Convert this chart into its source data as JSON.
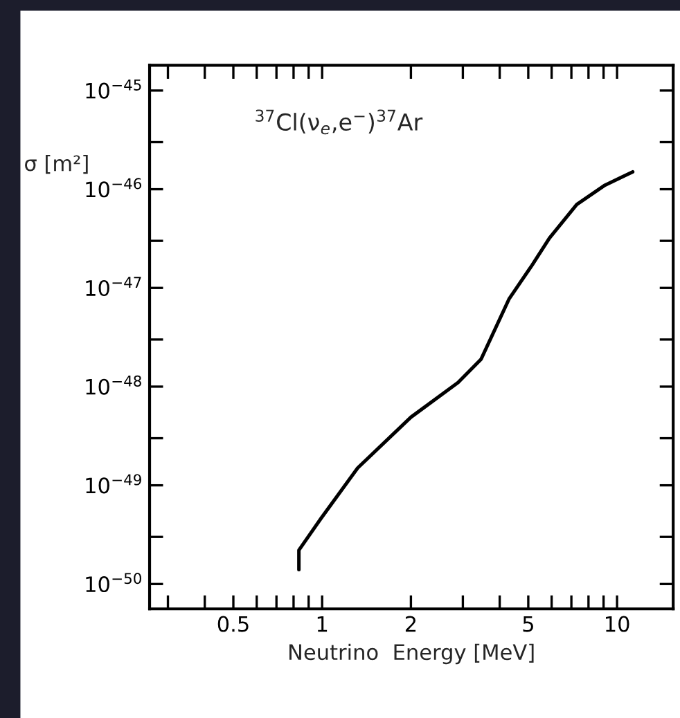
{
  "chart_data": {
    "type": "line",
    "xlabel": "Neutrino  Energy [MeV]",
    "ylabel": "σ [m²]",
    "annotations": [
      "$^{37}$Cl(ν$_{e}$,e$^{−}$)$^{37}$Ar"
    ],
    "log": "xy",
    "xlim": [
      0.26,
      15.5
    ],
    "xticks": [
      {
        "value": 0.3,
        "label": null
      },
      {
        "value": 0.4,
        "label": null
      },
      0.5,
      {
        "value": 0.6,
        "label": null
      },
      {
        "value": 0.7,
        "label": null
      },
      {
        "value": 0.8,
        "label": null
      },
      {
        "value": 0.9,
        "label": null
      },
      1,
      2,
      {
        "value": 3,
        "label": null
      },
      {
        "value": 4,
        "label": null
      },
      5,
      {
        "value": 6,
        "label": null
      },
      {
        "value": 7,
        "label": null
      },
      {
        "value": 8,
        "label": null
      },
      {
        "value": 9,
        "label": null
      },
      10
    ],
    "ylim": [
      5.6e-51,
      1.8e-45
    ],
    "yticks": [
      {
        "value": 1e-50,
        "label": "10$^{−50}$"
      },
      {
        "value": 3e-50,
        "label": null
      },
      {
        "value": 1e-49,
        "label": "10$^{−49}$"
      },
      {
        "value": 3e-49,
        "label": null
      },
      {
        "value": 1e-48,
        "label": "10$^{−48}$"
      },
      {
        "value": 3e-48,
        "label": null
      },
      {
        "value": 1e-47,
        "label": "10$^{−47}$"
      },
      {
        "value": 3e-47,
        "label": null
      },
      {
        "value": 1e-46,
        "label": "10$^{−46}$"
      },
      {
        "value": 3e-46,
        "label": null
      },
      {
        "value": 1e-45,
        "label": "10$^{−45}$"
      }
    ],
    "grid": false,
    "legend": false,
    "series": [
      {
        "color": "#000000",
        "x": [
          0.834,
          0.834,
          0.99,
          1.32,
          2.0,
          2.89,
          3.46,
          4.3,
          5.15,
          5.9,
          7.3,
          9.1,
          11.3
        ],
        "values": [
          1.4e-50,
          2.2e-50,
          4.6e-50,
          1.5e-49,
          4.9e-49,
          1.1e-48,
          1.9e-48,
          7.7e-48,
          1.7e-47,
          3.2e-47,
          7e-47,
          1.1e-46,
          1.5e-46
        ]
      }
    ]
  }
}
